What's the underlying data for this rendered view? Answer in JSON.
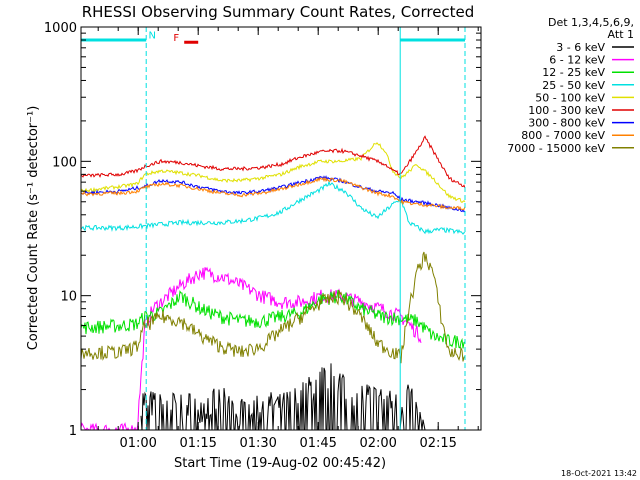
{
  "chart_data": {
    "type": "line",
    "title": "RHESSI Observing Summary Count Rates, Corrected",
    "xlabel": "Start Time (19-Aug-02 00:45:42)",
    "ylabel": "Corrected Count Rate (s⁻¹ detector⁻¹)",
    "yscale": "log",
    "ylim": [
      1,
      1000
    ],
    "xlim_minutes": [
      0,
      100
    ],
    "x_unit": "minutes since start time",
    "x_ticks": [
      {
        "label": "01:00",
        "value": 14.3
      },
      {
        "label": "01:15",
        "value": 29.3
      },
      {
        "label": "01:30",
        "value": 44.3
      },
      {
        "label": "01:45",
        "value": 59.3
      },
      {
        "label": "02:00",
        "value": 74.3
      },
      {
        "label": "02:15",
        "value": 89.3
      }
    ],
    "y_ticks": [
      {
        "label": "1",
        "value": 1
      },
      {
        "label": "10",
        "value": 10
      },
      {
        "label": "100",
        "value": 100
      },
      {
        "label": "1000",
        "value": 1000
      }
    ],
    "legend": {
      "placement": "right",
      "header": [
        "Det 1,3,4,5,6,9,",
        "Att 1"
      ]
    },
    "annotations": [
      {
        "text": "N",
        "x": 17.8,
        "y": 820,
        "color": "#00e0e0"
      },
      {
        "text": "F",
        "x": 23.8,
        "y": 790,
        "color": "#e00000"
      }
    ],
    "bars": [
      {
        "name": "night",
        "color": "#00e0e0",
        "spans": [
          [
            0,
            16.3
          ],
          [
            79.8,
            96
          ]
        ],
        "y": 800
      },
      {
        "name": "flare",
        "color": "#e00000",
        "spans": [
          [
            25.8,
            29.3
          ]
        ],
        "y": 770
      }
    ],
    "vertical_lines": [
      {
        "x": 0,
        "style": "solid",
        "color": "#00e0e0"
      },
      {
        "x": 16.3,
        "style": "dashed",
        "color": "#00e0e0"
      },
      {
        "x": 79.8,
        "style": "solid",
        "color": "#00e0e0"
      },
      {
        "x": 96,
        "style": "dashed",
        "color": "#00e0e0"
      }
    ],
    "series": [
      {
        "name": "3 - 6 keV",
        "color": "#000000",
        "x": [
          15,
          20,
          25,
          30,
          35,
          40,
          45,
          50,
          55,
          60,
          63,
          66,
          70,
          75,
          80,
          82,
          84,
          86
        ],
        "y": [
          1.7,
          1.5,
          1.6,
          1.5,
          1.7,
          1.4,
          1.6,
          1.5,
          1.8,
          2.4,
          2.6,
          2.2,
          1.9,
          1.7,
          1.5,
          2.0,
          1.3,
          1.0
        ]
      },
      {
        "name": "6 - 12 keV",
        "color": "#ff00ff",
        "x": [
          0,
          10,
          14,
          16,
          18,
          20,
          25,
          30,
          35,
          40,
          45,
          50,
          55,
          60,
          65,
          70,
          75,
          80,
          85
        ],
        "y": [
          1.0,
          1.0,
          1.0,
          6,
          8,
          9,
          12,
          15,
          14,
          12,
          10,
          9,
          9,
          10,
          10,
          9,
          8,
          7,
          5
        ]
      },
      {
        "name": "12 - 25 keV",
        "color": "#00e000",
        "x": [
          0,
          10,
          14,
          16,
          20,
          25,
          30,
          35,
          40,
          45,
          50,
          55,
          60,
          65,
          70,
          75,
          80,
          84,
          88,
          92,
          96
        ],
        "y": [
          5.8,
          6,
          6.2,
          7,
          7.5,
          10,
          8,
          7,
          6.5,
          6.5,
          7,
          7.5,
          9.5,
          10,
          8,
          7,
          6.8,
          6.5,
          5,
          4.6,
          4.6
        ]
      },
      {
        "name": "25 - 50 keV",
        "color": "#00e0e0",
        "x": [
          0,
          10,
          16,
          20,
          25,
          30,
          35,
          40,
          45,
          50,
          55,
          60,
          62,
          66,
          70,
          74,
          78,
          80,
          82,
          86,
          90,
          94,
          96
        ],
        "y": [
          32,
          32,
          33,
          34,
          35,
          35,
          35,
          36,
          38,
          42,
          52,
          62,
          68,
          60,
          45,
          38,
          48,
          52,
          35,
          30,
          31,
          30,
          29
        ]
      },
      {
        "name": "50 - 100 keV",
        "color": "#e0e000",
        "x": [
          0,
          10,
          14,
          16,
          20,
          25,
          30,
          35,
          40,
          45,
          50,
          55,
          60,
          65,
          70,
          74,
          76,
          78,
          80,
          84,
          88,
          92,
          96
        ],
        "y": [
          60,
          65,
          68,
          80,
          85,
          82,
          78,
          72,
          72,
          75,
          80,
          92,
          100,
          100,
          105,
          140,
          120,
          85,
          75,
          95,
          75,
          55,
          50
        ]
      },
      {
        "name": "100 - 300 keV",
        "color": "#e00000",
        "x": [
          0,
          10,
          14,
          16,
          20,
          25,
          30,
          35,
          40,
          45,
          50,
          55,
          60,
          65,
          70,
          74,
          76,
          78,
          80,
          84,
          86,
          88,
          92,
          96
        ],
        "y": [
          78,
          80,
          85,
          92,
          100,
          98,
          92,
          88,
          88,
          90,
          95,
          108,
          118,
          120,
          110,
          100,
          95,
          85,
          80,
          120,
          150,
          120,
          75,
          65
        ]
      },
      {
        "name": "300 - 800 keV",
        "color": "#0000ff",
        "x": [
          0,
          10,
          16,
          20,
          25,
          30,
          35,
          40,
          45,
          50,
          55,
          60,
          65,
          70,
          74,
          78,
          80,
          84,
          88,
          92,
          96
        ],
        "y": [
          58,
          60,
          65,
          72,
          70,
          64,
          60,
          58,
          60,
          64,
          70,
          76,
          72,
          64,
          60,
          58,
          52,
          50,
          48,
          45,
          43
        ]
      },
      {
        "name": "800 - 7000 keV",
        "color": "#ff8000",
        "x": [
          0,
          10,
          14,
          16,
          20,
          25,
          30,
          35,
          40,
          45,
          50,
          55,
          60,
          65,
          70,
          74,
          78,
          80,
          84,
          88,
          92,
          96
        ],
        "y": [
          57,
          58,
          60,
          64,
          68,
          66,
          62,
          58,
          56,
          58,
          62,
          68,
          74,
          72,
          64,
          58,
          55,
          50,
          48,
          47,
          45,
          45
        ]
      },
      {
        "name": "7000 - 15000 keV",
        "color": "#808000",
        "x": [
          0,
          10,
          14,
          16,
          20,
          25,
          30,
          35,
          40,
          45,
          50,
          55,
          60,
          65,
          70,
          74,
          78,
          80,
          82,
          84,
          86,
          88,
          90,
          92,
          96
        ],
        "y": [
          3.8,
          3.8,
          4.2,
          6,
          7,
          6.5,
          5,
          4.2,
          3.8,
          4.2,
          5.5,
          7,
          9,
          10,
          7,
          4.5,
          3.8,
          3.5,
          8,
          15,
          20,
          15,
          7,
          3.8,
          3.6
        ]
      }
    ]
  },
  "footer": {
    "timestamp": "18-Oct-2021 13:42"
  }
}
